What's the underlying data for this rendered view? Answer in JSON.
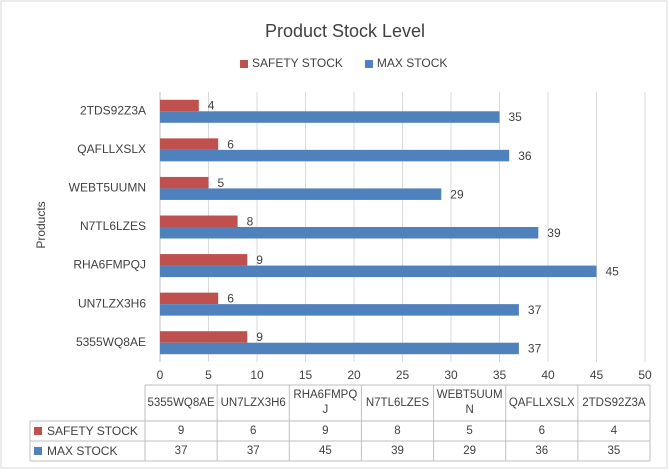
{
  "chart_data": {
    "type": "barh",
    "title": "Product Stock Level",
    "ylabel": "Products",
    "categories": [
      "5355WQ8AE",
      "UN7LZX3H6",
      "RHA6FMPQJ",
      "N7TL6LZES",
      "WEBT5UUMN",
      "QAFLLXSLX",
      "2TDS92Z3A"
    ],
    "series": [
      {
        "name": "SAFETY STOCK",
        "color": "#c0504d",
        "values": [
          9,
          6,
          9,
          8,
          5,
          6,
          4
        ]
      },
      {
        "name": "MAX STOCK",
        "color": "#4f81bd",
        "values": [
          37,
          37,
          45,
          39,
          29,
          36,
          35
        ]
      }
    ],
    "xlim": [
      0,
      50
    ],
    "xticks": [
      0,
      5,
      10,
      15,
      20,
      25,
      30,
      35,
      40,
      45,
      50
    ],
    "grid": true,
    "legend": "top"
  }
}
